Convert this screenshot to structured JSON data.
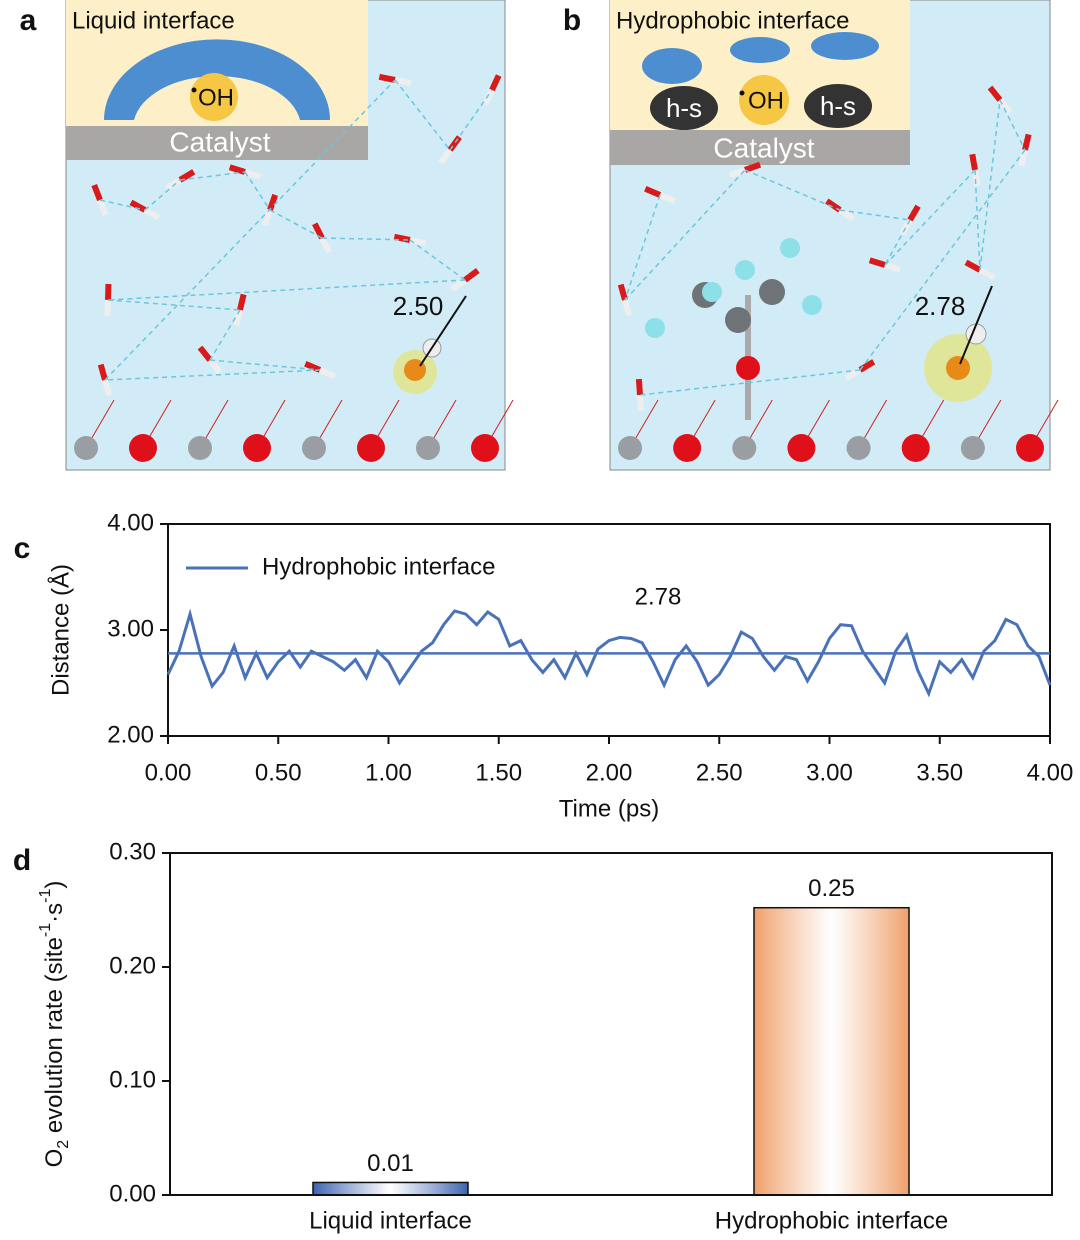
{
  "panels": [
    {
      "label": "a",
      "title": "Liquid interface",
      "radical": "OH",
      "substrate": "Catalyst",
      "distance": "2.50"
    },
    {
      "label": "b",
      "title": "Hydrophobic interface",
      "radical": "OH",
      "solvent": [
        "h-s",
        "h-s"
      ],
      "substrate": "Catalyst",
      "distance": "2.78"
    }
  ],
  "chart_data": [
    {
      "type": "line",
      "panel": "c",
      "xlabel": "Time (ps)",
      "ylabel": "Distance (Å)",
      "xlim": [
        0,
        4
      ],
      "ylim": [
        2,
        4
      ],
      "xticks": [
        {
          "value": 0,
          "label": "0.00"
        },
        {
          "value": 0.5,
          "label": "0.50"
        },
        {
          "value": 1,
          "label": "1.00"
        },
        {
          "value": 1.5,
          "label": "1.50"
        },
        {
          "value": 2,
          "label": "2.00"
        },
        {
          "value": 2.5,
          "label": "2.50"
        },
        {
          "value": 3,
          "label": "3.00"
        },
        {
          "value": 3.5,
          "label": "3.50"
        },
        {
          "value": 4,
          "label": "4.00"
        }
      ],
      "yticks": [
        {
          "value": 2,
          "label": "2.00"
        },
        {
          "value": 3,
          "label": "3.00"
        },
        {
          "value": 4,
          "label": "4.00"
        }
      ],
      "legend": "upper left",
      "reference_line": {
        "value": 2.78,
        "label": "2.78"
      },
      "x": [
        0,
        0.05,
        0.1,
        0.15,
        0.2,
        0.25,
        0.3,
        0.35,
        0.4,
        0.45,
        0.5,
        0.55,
        0.6,
        0.65,
        0.7,
        0.75,
        0.8,
        0.85,
        0.9,
        0.95,
        1,
        1.05,
        1.1,
        1.15,
        1.2,
        1.25,
        1.3,
        1.35,
        1.4,
        1.45,
        1.5,
        1.55,
        1.6,
        1.65,
        1.7,
        1.75,
        1.8,
        1.85,
        1.9,
        1.95,
        2,
        2.05,
        2.1,
        2.15,
        2.2,
        2.25,
        2.3,
        2.35,
        2.4,
        2.45,
        2.5,
        2.55,
        2.6,
        2.65,
        2.7,
        2.75,
        2.8,
        2.85,
        2.9,
        2.95,
        3,
        3.05,
        3.1,
        3.15,
        3.2,
        3.25,
        3.3,
        3.35,
        3.4,
        3.45,
        3.5,
        3.55,
        3.6,
        3.65,
        3.7,
        3.75,
        3.8,
        3.85,
        3.9,
        3.95,
        4
      ],
      "series": [
        {
          "name": "Hydrophobic interface",
          "color": "#4a72b8",
          "values": [
            2.58,
            2.8,
            3.15,
            2.75,
            2.47,
            2.6,
            2.85,
            2.55,
            2.78,
            2.55,
            2.7,
            2.8,
            2.65,
            2.8,
            2.75,
            2.7,
            2.62,
            2.72,
            2.55,
            2.8,
            2.7,
            2.5,
            2.65,
            2.8,
            2.88,
            3.05,
            3.18,
            3.15,
            3.05,
            3.17,
            3.1,
            2.85,
            2.9,
            2.72,
            2.6,
            2.72,
            2.55,
            2.78,
            2.58,
            2.82,
            2.9,
            2.93,
            2.92,
            2.88,
            2.7,
            2.48,
            2.72,
            2.85,
            2.7,
            2.48,
            2.58,
            2.75,
            2.98,
            2.92,
            2.75,
            2.62,
            2.75,
            2.72,
            2.52,
            2.7,
            2.92,
            3.05,
            3.04,
            2.8,
            2.65,
            2.5,
            2.8,
            2.95,
            2.62,
            2.4,
            2.7,
            2.6,
            2.72,
            2.55,
            2.8,
            2.9,
            3.1,
            3.05,
            2.85,
            2.75,
            2.48
          ]
        }
      ]
    },
    {
      "type": "bar",
      "panel": "d",
      "ylabel_parts": [
        "O",
        "2",
        " evolution rate (site",
        "-1",
        "·s",
        "-1",
        ")"
      ],
      "categories": [
        "Liquid interface",
        "Hydrophobic interface"
      ],
      "values": [
        0.011,
        0.252
      ],
      "value_labels": [
        "0.01",
        "0.25"
      ],
      "colors": [
        "#3d63b0",
        "#f0a06a"
      ],
      "ylim": [
        0,
        0.3
      ],
      "yticks": [
        {
          "value": 0,
          "label": "0.00"
        },
        {
          "value": 0.1,
          "label": "0.10"
        },
        {
          "value": 0.2,
          "label": "0.20"
        },
        {
          "value": 0.3,
          "label": "0.30"
        }
      ]
    }
  ]
}
